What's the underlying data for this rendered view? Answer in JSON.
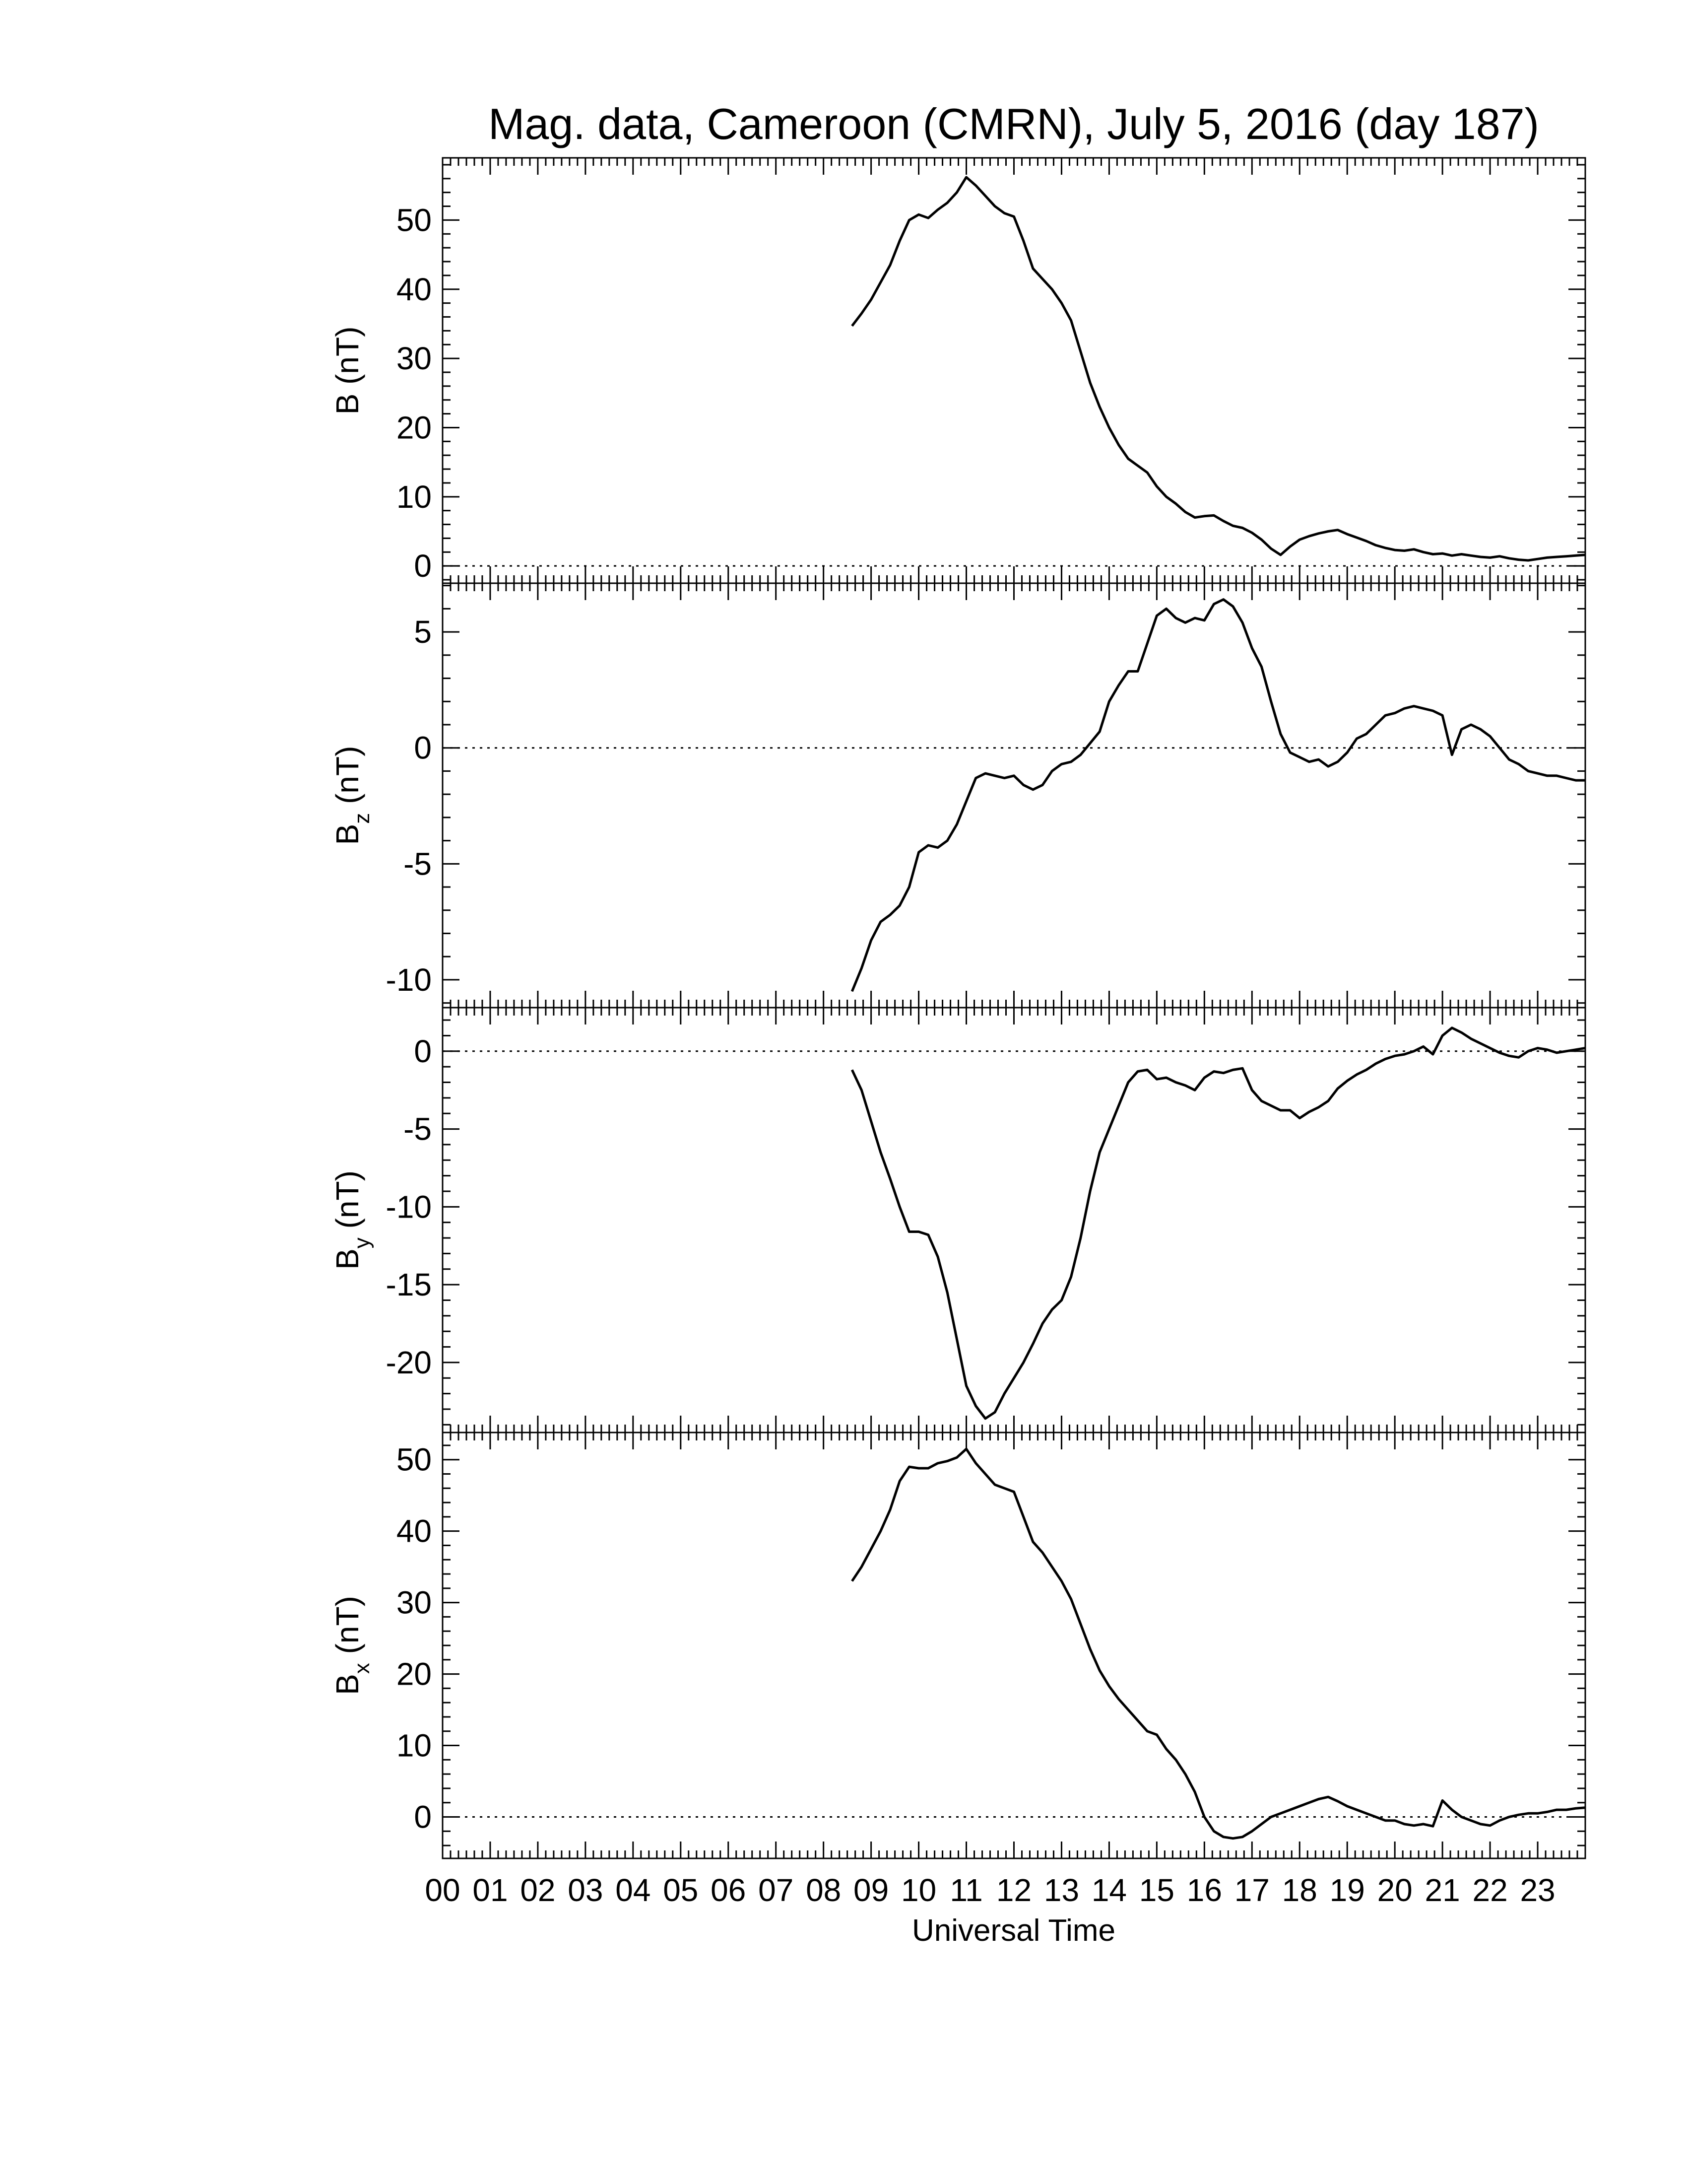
{
  "figure": {
    "title": "Mag. data, Cameroon (CMRN), July 5, 2016 (day 187)",
    "xlabel": "Universal Time",
    "x_tick_labels": [
      "00",
      "01",
      "02",
      "03",
      "04",
      "05",
      "06",
      "07",
      "08",
      "09",
      "10",
      "11",
      "12",
      "13",
      "14",
      "15",
      "16",
      "17",
      "18",
      "19",
      "20",
      "21",
      "22",
      "23"
    ]
  },
  "chart_data": [
    {
      "type": "line",
      "ylabel_main": "B (nT)",
      "ylabel_sub": "",
      "xlim": [
        0,
        24
      ],
      "ylim": [
        -2.5,
        59
      ],
      "yticks": [
        0,
        10,
        20,
        30,
        40,
        50
      ],
      "series": [
        {
          "x": [
            8.6,
            8.8,
            9.0,
            9.2,
            9.4,
            9.6,
            9.8,
            10.0,
            10.2,
            10.4,
            10.6,
            10.8,
            11.0,
            11.2,
            11.4,
            11.6,
            11.8,
            12.0,
            12.2,
            12.4,
            12.6,
            12.8,
            13.0,
            13.2,
            13.4,
            13.6,
            13.8,
            14.0,
            14.2,
            14.4,
            14.6,
            14.8,
            15.0,
            15.2,
            15.4,
            15.6,
            15.8,
            16.0,
            16.2,
            16.4,
            16.6,
            16.8,
            17.0,
            17.2,
            17.4,
            17.6,
            17.8,
            18.0,
            18.2,
            18.4,
            18.6,
            18.8,
            19.0,
            19.2,
            19.4,
            19.6,
            19.8,
            20.0,
            20.2,
            20.4,
            20.6,
            20.8,
            21.0,
            21.2,
            21.4,
            21.6,
            21.8,
            22.0,
            22.2,
            22.4,
            22.6,
            22.8,
            23.0,
            23.2,
            23.4,
            23.6,
            23.8,
            24.0
          ],
          "y": [
            34.7,
            36.5,
            38.5,
            41,
            43.5,
            47,
            50,
            50.8,
            50.3,
            51.5,
            52.5,
            54,
            56.2,
            55,
            53.5,
            52,
            51,
            50.5,
            47,
            43,
            41.5,
            40,
            38,
            35.5,
            31,
            26.5,
            23,
            20,
            17.5,
            15.5,
            14.5,
            13.5,
            11.5,
            10,
            9,
            7.8,
            7,
            7.2,
            7.3,
            6.5,
            5.8,
            5.5,
            4.8,
            3.8,
            2.5,
            1.6,
            2.8,
            3.8,
            4.3,
            4.7,
            5,
            5.2,
            4.6,
            4.1,
            3.6,
            3,
            2.6,
            2.3,
            2.2,
            2.4,
            2,
            1.7,
            1.8,
            1.5,
            1.7,
            1.5,
            1.3,
            1.2,
            1.4,
            1.1,
            0.9,
            0.8,
            1,
            1.2,
            1.3,
            1.4,
            1.5,
            1.6
          ]
        }
      ]
    },
    {
      "type": "line",
      "ylabel_main": "B",
      "ylabel_sub": "z",
      "ylabel_unit": "(nT)",
      "xlim": [
        0,
        24
      ],
      "ylim": [
        -11.2,
        7.1
      ],
      "yticks": [
        -10,
        -5,
        0,
        5
      ],
      "series": [
        {
          "x": [
            8.6,
            8.8,
            9.0,
            9.2,
            9.4,
            9.6,
            9.8,
            10.0,
            10.2,
            10.4,
            10.6,
            10.8,
            11.0,
            11.2,
            11.4,
            11.6,
            11.8,
            12.0,
            12.2,
            12.4,
            12.6,
            12.8,
            13.0,
            13.2,
            13.4,
            13.6,
            13.8,
            14.0,
            14.2,
            14.4,
            14.6,
            14.8,
            15.0,
            15.2,
            15.4,
            15.6,
            15.8,
            16.0,
            16.2,
            16.4,
            16.6,
            16.8,
            17.0,
            17.2,
            17.4,
            17.6,
            17.8,
            18.0,
            18.2,
            18.4,
            18.6,
            18.8,
            19.0,
            19.2,
            19.4,
            19.6,
            19.8,
            20.0,
            20.2,
            20.4,
            20.6,
            20.8,
            21.0,
            21.2,
            21.4,
            21.6,
            21.8,
            22.0,
            22.2,
            22.4,
            22.6,
            22.8,
            23.0,
            23.2,
            23.4,
            23.6,
            23.8,
            24.0
          ],
          "y": [
            -10.5,
            -9.5,
            -8.3,
            -7.5,
            -7.2,
            -6.8,
            -6,
            -4.5,
            -4.2,
            -4.3,
            -4,
            -3.3,
            -2.3,
            -1.3,
            -1.1,
            -1.2,
            -1.3,
            -1.2,
            -1.6,
            -1.8,
            -1.6,
            -1,
            -0.7,
            -0.6,
            -0.3,
            0.2,
            0.7,
            2,
            2.7,
            3.3,
            3.3,
            4.5,
            5.7,
            6,
            5.6,
            5.4,
            5.6,
            5.5,
            6.2,
            6.4,
            6.1,
            5.4,
            4.3,
            3.5,
            2,
            0.6,
            -0.2,
            -0.4,
            -0.6,
            -0.5,
            -0.8,
            -0.6,
            -0.2,
            0.4,
            0.6,
            1,
            1.4,
            1.5,
            1.7,
            1.8,
            1.7,
            1.6,
            1.4,
            -0.3,
            0.8,
            1,
            0.8,
            0.5,
            0,
            -0.5,
            -0.7,
            -1,
            -1.1,
            -1.2,
            -1.2,
            -1.3,
            -1.4,
            -1.4
          ]
        }
      ]
    },
    {
      "type": "line",
      "ylabel_main": "B",
      "ylabel_sub": "y",
      "ylabel_unit": "(nT)",
      "xlim": [
        0,
        24
      ],
      "ylim": [
        -24.5,
        2.8
      ],
      "yticks": [
        -20,
        -15,
        -10,
        -5,
        0
      ],
      "series": [
        {
          "x": [
            8.6,
            8.8,
            9.0,
            9.2,
            9.4,
            9.6,
            9.8,
            10.0,
            10.2,
            10.4,
            10.6,
            10.8,
            11.0,
            11.2,
            11.4,
            11.6,
            11.8,
            12.0,
            12.2,
            12.4,
            12.6,
            12.8,
            13.0,
            13.2,
            13.4,
            13.6,
            13.8,
            14.0,
            14.2,
            14.4,
            14.6,
            14.8,
            15.0,
            15.2,
            15.4,
            15.6,
            15.8,
            16.0,
            16.2,
            16.4,
            16.6,
            16.8,
            17.0,
            17.2,
            17.4,
            17.6,
            17.8,
            18.0,
            18.2,
            18.4,
            18.6,
            18.8,
            19.0,
            19.2,
            19.4,
            19.6,
            19.8,
            20.0,
            20.2,
            20.4,
            20.6,
            20.8,
            21.0,
            21.2,
            21.4,
            21.6,
            21.8,
            22.0,
            22.2,
            22.4,
            22.6,
            22.8,
            23.0,
            23.2,
            23.4,
            23.6,
            23.8,
            24.0
          ],
          "y": [
            -1.2,
            -2.5,
            -4.5,
            -6.5,
            -8.2,
            -10,
            -11.6,
            -11.6,
            -11.8,
            -13.2,
            -15.5,
            -18.5,
            -21.5,
            -22.8,
            -23.6,
            -23.2,
            -22,
            -21,
            -20,
            -18.8,
            -17.5,
            -16.6,
            -16,
            -14.5,
            -12,
            -9,
            -6.5,
            -5,
            -3.5,
            -2,
            -1.3,
            -1.2,
            -1.8,
            -1.7,
            -2,
            -2.2,
            -2.5,
            -1.7,
            -1.3,
            -1.4,
            -1.2,
            -1.1,
            -2.5,
            -3.2,
            -3.5,
            -3.8,
            -3.8,
            -4.3,
            -3.9,
            -3.6,
            -3.2,
            -2.4,
            -1.9,
            -1.5,
            -1.2,
            -0.8,
            -0.5,
            -0.3,
            -0.2,
            0,
            0.3,
            -0.2,
            1,
            1.5,
            1.2,
            0.8,
            0.5,
            0.2,
            -0.1,
            -0.3,
            -0.4,
            0,
            0.2,
            0.1,
            -0.1,
            0,
            0.1,
            0.2
          ]
        }
      ]
    },
    {
      "type": "line",
      "ylabel_main": "B",
      "ylabel_sub": "x",
      "ylabel_unit": "(nT)",
      "xlim": [
        0,
        24
      ],
      "ylim": [
        -5.8,
        53.8
      ],
      "yticks": [
        0,
        10,
        20,
        30,
        40,
        50
      ],
      "series": [
        {
          "x": [
            8.6,
            8.8,
            9.0,
            9.2,
            9.4,
            9.6,
            9.8,
            10.0,
            10.2,
            10.4,
            10.6,
            10.8,
            11.0,
            11.2,
            11.4,
            11.6,
            11.8,
            12.0,
            12.2,
            12.4,
            12.6,
            12.8,
            13.0,
            13.2,
            13.4,
            13.6,
            13.8,
            14.0,
            14.2,
            14.4,
            14.6,
            14.8,
            15.0,
            15.2,
            15.4,
            15.6,
            15.8,
            16.0,
            16.2,
            16.4,
            16.6,
            16.8,
            17.0,
            17.2,
            17.4,
            17.6,
            17.8,
            18.0,
            18.2,
            18.4,
            18.6,
            18.8,
            19.0,
            19.2,
            19.4,
            19.6,
            19.8,
            20.0,
            20.2,
            20.4,
            20.6,
            20.8,
            21.0,
            21.2,
            21.4,
            21.6,
            21.8,
            22.0,
            22.2,
            22.4,
            22.6,
            22.8,
            23.0,
            23.2,
            23.4,
            23.6,
            23.8,
            24.0
          ],
          "y": [
            33,
            35,
            37.5,
            40,
            43,
            47,
            49,
            48.8,
            48.8,
            49.5,
            49.8,
            50.3,
            51.5,
            49.5,
            48,
            46.5,
            46,
            45.5,
            42,
            38.5,
            37,
            35,
            33,
            30.5,
            27,
            23.5,
            20.5,
            18.3,
            16.5,
            15,
            13.5,
            12,
            11.5,
            9.5,
            8,
            6,
            3.5,
            0,
            -2,
            -2.8,
            -3,
            -2.8,
            -2,
            -1,
            0,
            0.5,
            1,
            1.5,
            2,
            2.5,
            2.8,
            2.2,
            1.5,
            1,
            0.5,
            0,
            -0.5,
            -0.5,
            -1,
            -1.2,
            -1,
            -1.3,
            2.3,
            1,
            0,
            -0.5,
            -1,
            -1.2,
            -0.5,
            0,
            0.3,
            0.5,
            0.5,
            0.7,
            1,
            1,
            1.2,
            1.3
          ]
        }
      ]
    }
  ]
}
